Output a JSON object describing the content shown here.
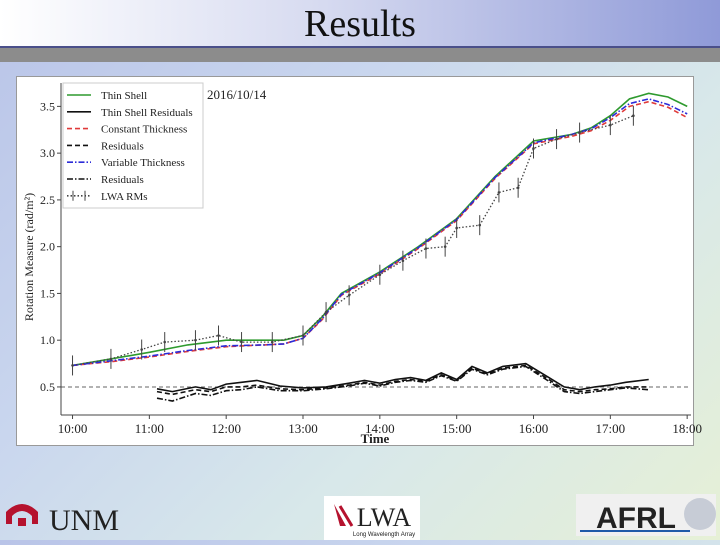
{
  "slide": {
    "title": "Results"
  },
  "logos": {
    "unm": "UNM",
    "lwa": "LWA",
    "lwa_sub": "Long Wavelength Array",
    "afrl": "AFRL"
  },
  "chart_data": {
    "type": "line",
    "annotation": "2016/10/14",
    "xlabel": "Time",
    "ylabel": "Rotation Measure (rad/m²)",
    "xlim": [
      9.85,
      18.05
    ],
    "ylim": [
      0.2,
      3.75
    ],
    "xticks": [
      10,
      11,
      12,
      13,
      14,
      15,
      16,
      17,
      18
    ],
    "xtick_labels": [
      "10:00",
      "11:00",
      "12:00",
      "13:00",
      "14:00",
      "15:00",
      "16:00",
      "17:00",
      "18:00"
    ],
    "yticks": [
      0.5,
      1.0,
      1.5,
      2.0,
      2.5,
      3.0,
      3.5
    ],
    "ytick_labels": [
      "0.5",
      "1.0",
      "1.5",
      "2.0",
      "2.5",
      "3.0",
      "3.5"
    ],
    "reference_line": 0.5,
    "legend_position": "top-left",
    "series": [
      {
        "name": "Thin Shell",
        "color": "#2e9a2e",
        "style": "solid",
        "x": [
          10.0,
          10.5,
          11.0,
          11.5,
          12.0,
          12.5,
          12.75,
          13.0,
          13.25,
          13.5,
          14.0,
          14.5,
          15.0,
          15.5,
          16.0,
          16.5,
          16.75,
          17.0,
          17.25,
          17.5,
          17.75,
          18.0
        ],
        "y": [
          0.73,
          0.8,
          0.87,
          0.95,
          1.0,
          1.0,
          1.0,
          1.05,
          1.25,
          1.5,
          1.73,
          2.0,
          2.3,
          2.75,
          3.13,
          3.2,
          3.27,
          3.4,
          3.58,
          3.64,
          3.6,
          3.5
        ]
      },
      {
        "name": "Thin Shell Residuals",
        "color": "#111111",
        "style": "solid",
        "x": [
          11.1,
          11.3,
          11.6,
          11.8,
          12.0,
          12.2,
          12.4,
          12.7,
          13.0,
          13.3,
          13.6,
          13.8,
          14.0,
          14.2,
          14.4,
          14.6,
          14.8,
          15.0,
          15.2,
          15.4,
          15.6,
          15.9,
          16.2,
          16.4,
          16.6,
          16.8,
          17.0,
          17.2,
          17.5
        ],
        "y": [
          0.48,
          0.45,
          0.5,
          0.47,
          0.53,
          0.55,
          0.57,
          0.51,
          0.49,
          0.5,
          0.54,
          0.57,
          0.54,
          0.58,
          0.6,
          0.57,
          0.65,
          0.58,
          0.72,
          0.65,
          0.72,
          0.75,
          0.6,
          0.5,
          0.47,
          0.5,
          0.52,
          0.55,
          0.58
        ]
      },
      {
        "name": "Constant Thickness",
        "color": "#e03a3a",
        "style": "dashed",
        "x": [
          10.0,
          10.5,
          11.0,
          11.5,
          12.0,
          12.5,
          12.75,
          13.0,
          13.25,
          13.5,
          14.0,
          14.5,
          15.0,
          15.5,
          16.0,
          16.5,
          16.75,
          17.0,
          17.25,
          17.5,
          17.75,
          18.0
        ],
        "y": [
          0.73,
          0.77,
          0.82,
          0.88,
          0.93,
          0.95,
          0.96,
          1.02,
          1.22,
          1.48,
          1.71,
          1.98,
          2.28,
          2.73,
          3.1,
          3.18,
          3.24,
          3.35,
          3.5,
          3.55,
          3.49,
          3.38
        ]
      },
      {
        "name": "Residuals",
        "color": "#111111",
        "style": "dashed",
        "x": [
          11.1,
          11.3,
          11.6,
          11.8,
          12.0,
          12.2,
          12.4,
          12.7,
          13.0,
          13.3,
          13.6,
          13.8,
          14.0,
          14.2,
          14.4,
          14.6,
          14.8,
          15.0,
          15.2,
          15.4,
          15.6,
          15.9,
          16.2,
          16.4,
          16.6,
          16.8,
          17.0,
          17.2,
          17.5
        ],
        "y": [
          0.45,
          0.42,
          0.47,
          0.45,
          0.5,
          0.5,
          0.52,
          0.48,
          0.47,
          0.49,
          0.52,
          0.55,
          0.52,
          0.56,
          0.58,
          0.56,
          0.63,
          0.57,
          0.7,
          0.64,
          0.7,
          0.73,
          0.58,
          0.47,
          0.45,
          0.47,
          0.48,
          0.5,
          0.5
        ]
      },
      {
        "name": "Variable Thickness",
        "color": "#2b2bd8",
        "style": "dashdot",
        "x": [
          10.0,
          10.5,
          11.0,
          11.5,
          12.0,
          12.5,
          12.75,
          13.0,
          13.25,
          13.5,
          14.0,
          14.5,
          15.0,
          15.5,
          16.0,
          16.5,
          16.75,
          17.0,
          17.25,
          17.5,
          17.75,
          18.0
        ],
        "y": [
          0.73,
          0.78,
          0.83,
          0.89,
          0.94,
          0.95,
          0.96,
          1.02,
          1.23,
          1.49,
          1.72,
          1.99,
          2.29,
          2.74,
          3.11,
          3.2,
          3.26,
          3.38,
          3.53,
          3.58,
          3.52,
          3.42
        ]
      },
      {
        "name": "Residuals",
        "color": "#111111",
        "style": "dashdot",
        "x": [
          11.1,
          11.3,
          11.6,
          11.8,
          12.0,
          12.2,
          12.4,
          12.7,
          13.0,
          13.3,
          13.6,
          13.8,
          14.0,
          14.2,
          14.4,
          14.6,
          14.8,
          15.0,
          15.2,
          15.4,
          15.6,
          15.9,
          16.2,
          16.4,
          16.6,
          16.8,
          17.0,
          17.2,
          17.5
        ],
        "y": [
          0.38,
          0.35,
          0.43,
          0.41,
          0.46,
          0.47,
          0.5,
          0.46,
          0.46,
          0.48,
          0.51,
          0.54,
          0.51,
          0.55,
          0.57,
          0.55,
          0.62,
          0.56,
          0.69,
          0.63,
          0.69,
          0.72,
          0.56,
          0.45,
          0.43,
          0.45,
          0.47,
          0.49,
          0.47
        ]
      },
      {
        "name": "LWA RMs",
        "color": "#444444",
        "style": "dotted",
        "x": [
          10.0,
          10.5,
          10.9,
          11.2,
          11.6,
          11.9,
          12.2,
          12.6,
          13.0,
          13.3,
          13.6,
          14.0,
          14.3,
          14.6,
          14.85,
          15.0,
          15.3,
          15.55,
          15.8,
          16.0,
          16.3,
          16.6,
          17.0,
          17.3
        ],
        "y": [
          0.73,
          0.8,
          0.9,
          0.98,
          1.0,
          1.05,
          0.98,
          0.98,
          1.05,
          1.3,
          1.48,
          1.7,
          1.85,
          1.98,
          2.0,
          2.2,
          2.23,
          2.58,
          2.63,
          3.05,
          3.15,
          3.22,
          3.3,
          3.4
        ]
      }
    ]
  }
}
